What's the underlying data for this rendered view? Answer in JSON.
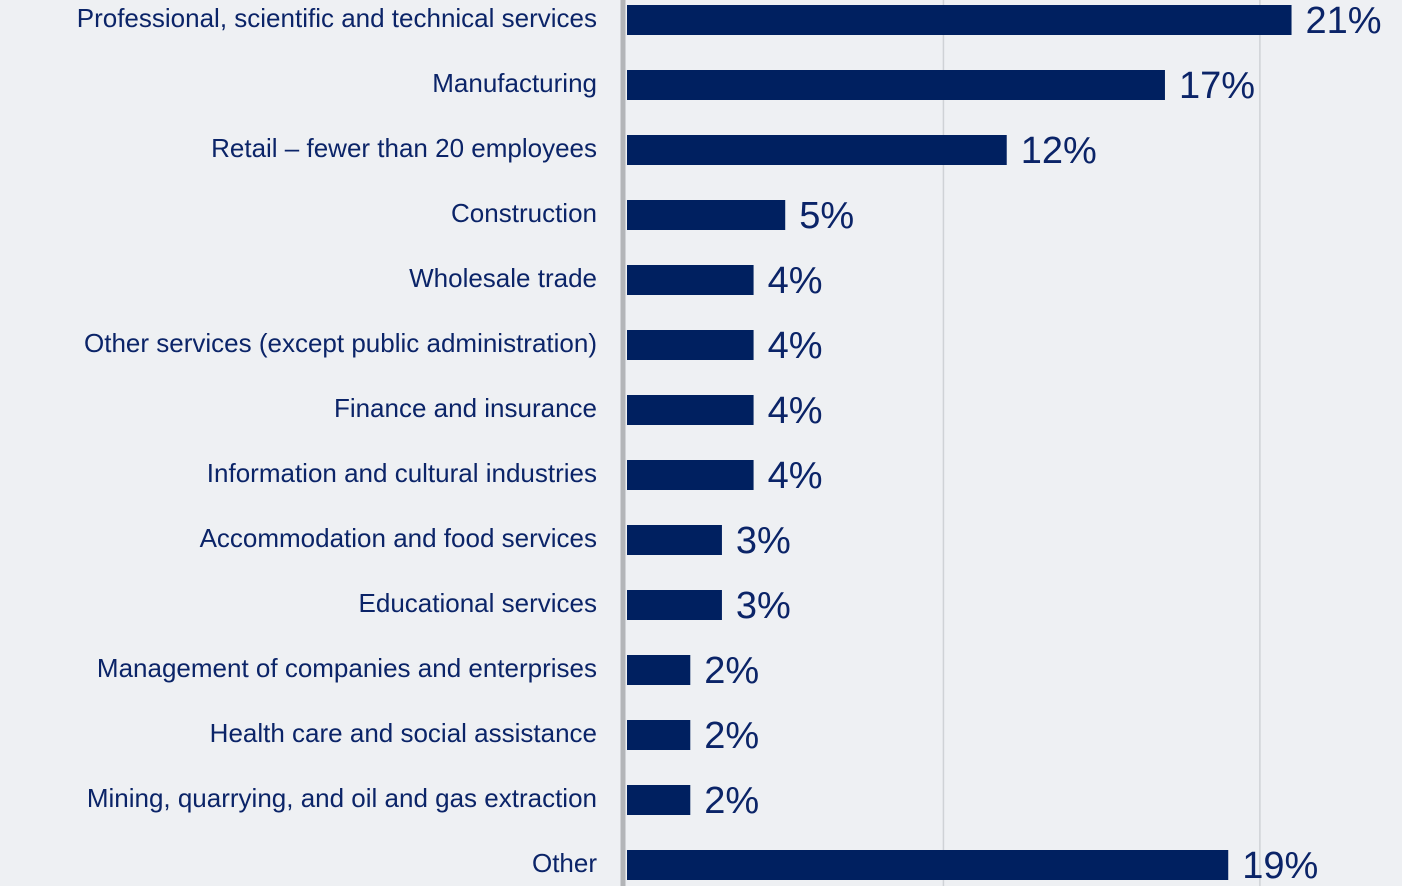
{
  "chart_data": {
    "type": "bar",
    "orientation": "horizontal",
    "categories": [
      "Professional, scientific and technical services",
      "Manufacturing",
      "Retail – fewer than 20 employees",
      "Construction",
      "Wholesale trade",
      "Other services (except public administration)",
      "Finance and insurance",
      "Information and cultural industries",
      "Accommodation and food services",
      "Educational services",
      "Management of companies and enterprises",
      "Health care and social assistance",
      "Mining, quarrying, and oil and gas extraction",
      "Other"
    ],
    "values": [
      21,
      17,
      12,
      5,
      4,
      4,
      4,
      4,
      3,
      3,
      2,
      2,
      2,
      19
    ],
    "value_labels": [
      "21%",
      "17%",
      "12%",
      "5%",
      "4%",
      "4%",
      "4%",
      "4%",
      "3%",
      "3%",
      "2%",
      "2%",
      "2%",
      "19%"
    ],
    "color": "#002060",
    "xlim": [
      0,
      22.5
    ],
    "xticks": [
      10,
      20
    ],
    "grid": true
  }
}
